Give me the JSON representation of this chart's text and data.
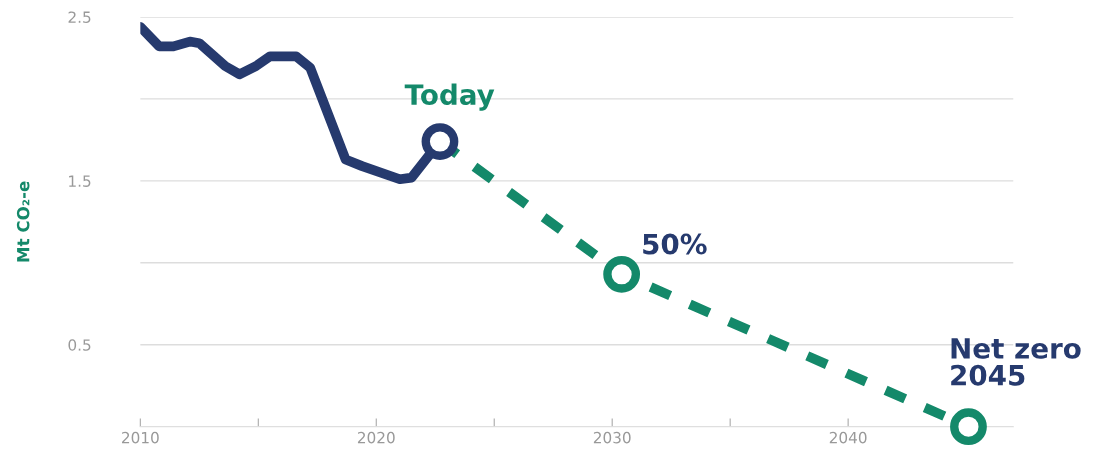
{
  "chart_data": {
    "type": "line",
    "ylabel": "Mt CO₂-e",
    "x": [
      2010,
      2010.8,
      2011.4,
      2012.1,
      2012.5,
      2013.6,
      2014.2,
      2014.9,
      2015.5,
      2016.6,
      2017.2,
      2018.7,
      2019.4,
      2021.0,
      2021.5,
      2022.7
    ],
    "series": [
      {
        "color": "#263a6e",
        "line_style": "solid",
        "values": [
          2.44,
          2.32,
          2.32,
          2.35,
          2.34,
          2.2,
          2.15,
          2.2,
          2.26,
          2.26,
          2.19,
          1.63,
          1.59,
          1.51,
          1.52,
          1.74
        ]
      },
      {
        "color": "#14896a",
        "line_style": "dashed",
        "x": [
          2022.7,
          2030.4,
          2045.1
        ],
        "values": [
          1.74,
          0.93,
          0.0
        ]
      },
      {
        "type": "scatter",
        "marker": "circle",
        "x": [
          2022.7,
          2030.4,
          2045.1
        ],
        "values": [
          1.74,
          0.93,
          0.0
        ],
        "colors": [
          "#263a6e",
          "#14896a",
          "#14896a"
        ]
      }
    ],
    "annotations": [
      {
        "text": "Today",
        "x": 2022.7,
        "y": 1.74
      },
      {
        "text": "50%",
        "x": 2030.4,
        "y": 0.93
      },
      {
        "text": "Net zero\n2045",
        "x": 2045.1,
        "y": 0.0
      }
    ],
    "xlim": [
      2010,
      2047
    ],
    "xticks": [
      2010,
      {
        "value": 2015,
        "label": null
      },
      2020,
      {
        "value": 2025,
        "label": null
      },
      2030,
      {
        "value": 2035,
        "label": null
      },
      2040
    ],
    "ylim": [
      0,
      2.5
    ],
    "yticks": [
      {
        "value": 0,
        "label": null
      },
      0.5,
      {
        "value": 1.0,
        "label": null
      },
      1.5,
      {
        "value": 2.0,
        "label": null
      },
      2.5
    ],
    "grid": "y",
    "legend": false,
    "marker": "none"
  }
}
